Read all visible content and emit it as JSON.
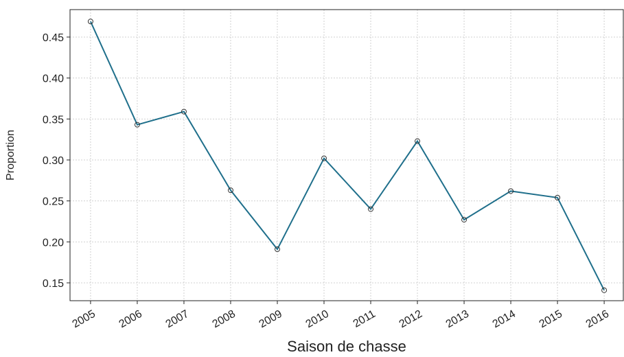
{
  "chart_data": {
    "type": "line",
    "xlabel": "Saison de chasse",
    "ylabel": "Proportion",
    "x": [
      2005,
      2006,
      2007,
      2008,
      2009,
      2010,
      2011,
      2012,
      2013,
      2014,
      2015,
      2016
    ],
    "series": [
      {
        "color": "#1f6f8b",
        "values": [
          0.469,
          0.343,
          0.359,
          0.263,
          0.191,
          0.302,
          0.24,
          0.323,
          0.227,
          0.262,
          0.254,
          0.141
        ]
      }
    ],
    "xlim": [
      2004.56,
      2016.41
    ],
    "xticks": [
      2005,
      2006,
      2007,
      2008,
      2009,
      2010,
      2011,
      2012,
      2013,
      2014,
      2015,
      2016
    ],
    "ylim": [
      0.1282,
      0.4835
    ],
    "yticks": [
      0.15,
      {
        "value": 0.2,
        "label": "0.20"
      },
      0.25,
      {
        "value": 0.3,
        "label": "0.30"
      },
      0.35,
      {
        "value": 0.4,
        "label": "0.40"
      },
      0.45
    ],
    "grid": true
  }
}
